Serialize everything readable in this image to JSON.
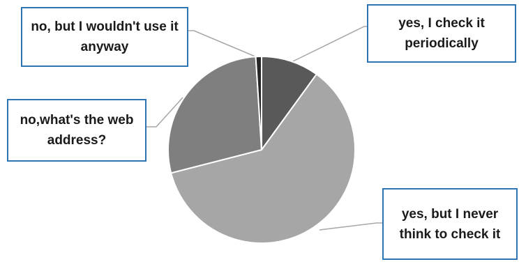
{
  "chart_data": {
    "type": "pie",
    "title": "",
    "slices": [
      {
        "label": "yes, I check it periodically",
        "value": 10,
        "color": "#595959"
      },
      {
        "label": "yes, but I never think to check it",
        "value": 61,
        "color": "#A6A6A6"
      },
      {
        "label": "no,what's the web address?",
        "value": 28,
        "color": "#7F7F7F"
      },
      {
        "label": "no, but I wouldn't use it anyway",
        "value": 1,
        "color": "#262626"
      }
    ],
    "labels": {
      "slice_0": "yes, I check it periodically",
      "slice_1": "yes, but I never think to check it",
      "slice_2": "no,what's the web address?",
      "slice_3": "no, but I wouldn't use it anyway"
    },
    "label_border_color": "#2E75B6",
    "leader_color": "#A6A6A6"
  }
}
